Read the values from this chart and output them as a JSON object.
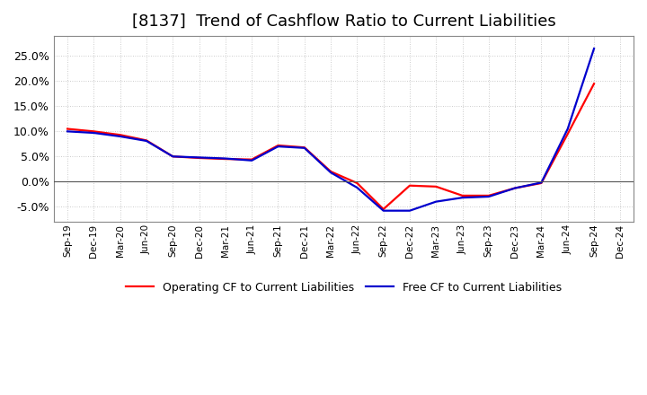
{
  "title": "[8137]  Trend of Cashflow Ratio to Current Liabilities",
  "x_labels": [
    "Sep-19",
    "Dec-19",
    "Mar-20",
    "Jun-20",
    "Sep-20",
    "Dec-20",
    "Mar-21",
    "Jun-21",
    "Sep-21",
    "Dec-21",
    "Mar-22",
    "Jun-22",
    "Sep-22",
    "Dec-22",
    "Mar-23",
    "Jun-23",
    "Sep-23",
    "Dec-23",
    "Mar-24",
    "Jun-24",
    "Sep-24",
    "Dec-24"
  ],
  "operating_cf": [
    10.5,
    10.0,
    9.3,
    8.2,
    5.0,
    4.7,
    4.5,
    4.4,
    7.2,
    6.8,
    2.0,
    -0.3,
    -5.5,
    -0.8,
    -1.0,
    -2.8,
    -2.8,
    -1.3,
    -0.3,
    9.5,
    19.5,
    null
  ],
  "free_cf": [
    10.0,
    9.7,
    9.0,
    8.1,
    5.0,
    4.8,
    4.6,
    4.2,
    7.0,
    6.7,
    1.8,
    -1.2,
    -5.8,
    -5.8,
    -4.0,
    -3.2,
    -3.0,
    -1.3,
    -0.2,
    10.5,
    26.5,
    null
  ],
  "operating_cf_color": "#ff0000",
  "free_cf_color": "#0000cd",
  "ylim": [
    -8.0,
    29.0
  ],
  "yticks": [
    -5.0,
    0.0,
    5.0,
    10.0,
    15.0,
    20.0,
    25.0
  ],
  "legend_op": "Operating CF to Current Liabilities",
  "legend_free": "Free CF to Current Liabilities",
  "background_color": "#ffffff",
  "grid_color": "#bbbbbb",
  "title_fontsize": 13,
  "line_width": 1.6
}
